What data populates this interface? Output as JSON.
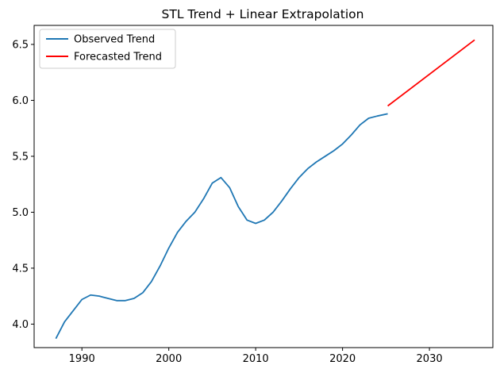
{
  "chart_data": {
    "type": "line",
    "title": "STL Trend + Linear Extrapolation",
    "xlabel": "",
    "ylabel": "",
    "xlim": [
      1984.5,
      2037.3
    ],
    "ylim": [
      3.79,
      6.67
    ],
    "x_ticks": [
      1990,
      2000,
      2010,
      2020,
      2030
    ],
    "y_ticks": [
      4.0,
      4.5,
      5.0,
      5.5,
      6.0,
      6.5
    ],
    "y_tick_labels": [
      "4.0",
      "4.5",
      "5.0",
      "5.5",
      "6.0",
      "6.5"
    ],
    "grid": false,
    "legend_position": "top-left",
    "series": [
      {
        "name": "Observed Trend",
        "color": "#1f77b4",
        "x": [
          1987.0,
          1988.0,
          1989.0,
          1990.0,
          1991.0,
          1992.0,
          1993.0,
          1994.0,
          1995.0,
          1996.0,
          1997.0,
          1998.0,
          1999.0,
          2000.0,
          2001.0,
          2002.0,
          2003.0,
          2004.0,
          2005.0,
          2006.0,
          2007.0,
          2008.0,
          2009.0,
          2010.0,
          2011.0,
          2012.0,
          2013.0,
          2014.0,
          2015.0,
          2016.0,
          2017.0,
          2018.0,
          2019.0,
          2020.0,
          2021.0,
          2022.0,
          2023.0,
          2024.0,
          2025.2
        ],
        "y": [
          3.87,
          4.02,
          4.12,
          4.22,
          4.26,
          4.25,
          4.23,
          4.21,
          4.21,
          4.23,
          4.28,
          4.38,
          4.52,
          4.68,
          4.82,
          4.92,
          5.0,
          5.12,
          5.26,
          5.31,
          5.22,
          5.05,
          4.93,
          4.9,
          4.93,
          5.0,
          5.1,
          5.21,
          5.31,
          5.39,
          5.45,
          5.5,
          5.55,
          5.61,
          5.69,
          5.78,
          5.84,
          5.86,
          5.88
        ]
      },
      {
        "name": "Forecasted Trend",
        "color": "#ff0000",
        "x": [
          2025.2,
          2035.2
        ],
        "y": [
          5.95,
          6.54
        ]
      }
    ]
  }
}
